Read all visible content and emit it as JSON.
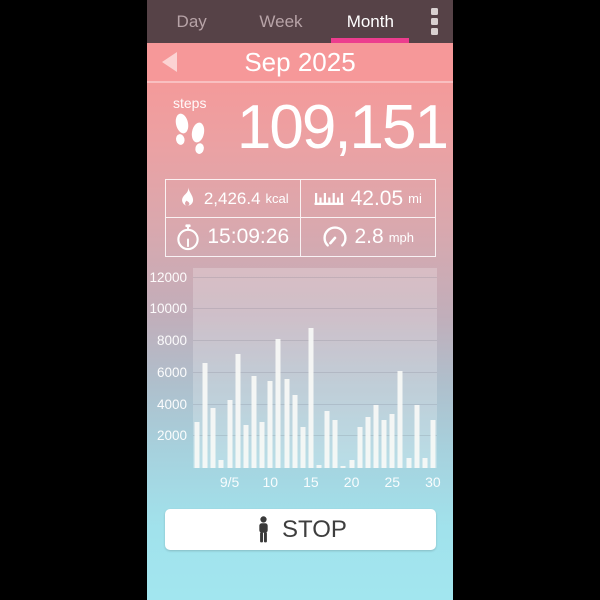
{
  "tabs": {
    "items": [
      {
        "label": "Day",
        "active": false
      },
      {
        "label": "Week",
        "active": false
      },
      {
        "label": "Month",
        "active": true
      }
    ]
  },
  "header": {
    "title": "Sep 2025"
  },
  "summary": {
    "steps_label": "steps",
    "steps_value": "109,151"
  },
  "stats": {
    "calories": {
      "icon": "flame-icon",
      "value": "2,426.4",
      "unit": "kcal"
    },
    "distance": {
      "icon": "ruler-icon",
      "value": "42.05",
      "unit": "mi"
    },
    "time": {
      "icon": "stopwatch-icon",
      "value": "15:09:26",
      "unit": ""
    },
    "speed": {
      "icon": "speedometer-icon",
      "value": "2.8",
      "unit": "mph"
    }
  },
  "chart_data": {
    "type": "bar",
    "title": "",
    "xlabel": "",
    "ylabel": "",
    "x": [
      1,
      2,
      3,
      4,
      5,
      6,
      7,
      8,
      9,
      10,
      11,
      12,
      13,
      14,
      15,
      16,
      17,
      18,
      19,
      20,
      21,
      22,
      23,
      24,
      25,
      26,
      27,
      28,
      29,
      30
    ],
    "values": [
      2900,
      6600,
      3800,
      500,
      4300,
      7200,
      2700,
      5800,
      2900,
      5500,
      8100,
      5600,
      4600,
      2600,
      8800,
      200,
      3600,
      3000,
      100,
      500,
      2600,
      3200,
      4000,
      3000,
      3400,
      6100,
      600,
      4000,
      600,
      3000
    ],
    "y_ticks": [
      2000,
      4000,
      6000,
      8000,
      10000,
      12000
    ],
    "x_tick_labels": [
      {
        "label": "9/5",
        "day": 5
      },
      {
        "label": "10",
        "day": 10
      },
      {
        "label": "15",
        "day": 15
      },
      {
        "label": "20",
        "day": 20
      },
      {
        "label": "25",
        "day": 25
      },
      {
        "label": "30",
        "day": 30
      }
    ],
    "ylim": [
      0,
      12600
    ],
    "grid": true,
    "bar_color": "#f7f9f6",
    "legend": null
  },
  "stop_button": {
    "label": "STOP",
    "icon": "person-icon"
  },
  "colors": {
    "tabbar_bg": "#564247",
    "tab_inactive_text": "#b7a3a7",
    "tab_active_text": "#ffffff",
    "tab_underline": "#ec3d8e",
    "header_bg": "#f69899",
    "back_arrow": "#fcd3d3",
    "gradient_top": "#f49a9a",
    "gradient_bottom": "#a2e6ef",
    "stat_text": "#ffffff",
    "stop_text": "#3e3e3e",
    "letterbox": "#000000"
  }
}
